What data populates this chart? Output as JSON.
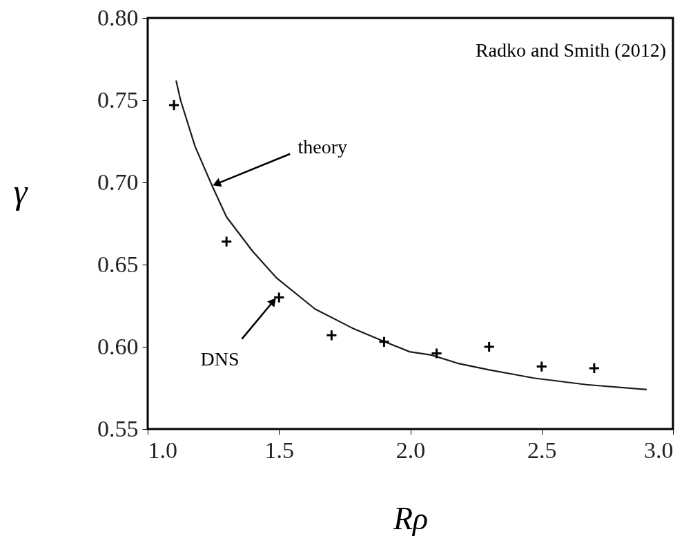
{
  "chart_data": {
    "type": "line",
    "xlabel": "Rρ",
    "ylabel": "γ",
    "xlim": [
      1.0,
      3.0
    ],
    "ylim": [
      0.55,
      0.8
    ],
    "xticks": [
      {
        "value": 1.0,
        "label": "1.0"
      },
      {
        "value": 1.5,
        "label": "1.5"
      },
      {
        "value": 2.0,
        "label": "2.0"
      },
      {
        "value": 2.5,
        "label": "2.5"
      },
      {
        "value": 3.0,
        "label": "3.0"
      }
    ],
    "yticks": [
      {
        "value": 0.55,
        "label": "0.55"
      },
      {
        "value": 0.6,
        "label": "0.60"
      },
      {
        "value": 0.65,
        "label": "0.65"
      },
      {
        "value": 0.7,
        "label": "0.70"
      },
      {
        "value": 0.75,
        "label": "0.75"
      },
      {
        "value": 0.8,
        "label": "0.80"
      }
    ],
    "grid": false,
    "series": [
      {
        "type": "line",
        "color": "#1a1a1a",
        "line_style": "solid",
        "marker": "none",
        "x": [
          1.108,
          1.125,
          1.18,
          1.245,
          1.3,
          1.4,
          1.49,
          1.637,
          1.784,
          1.903,
          1.997,
          2.08,
          2.18,
          2.3,
          2.47,
          2.67,
          2.9
        ],
        "values": [
          0.762,
          0.75,
          0.722,
          0.698,
          0.679,
          0.658,
          0.642,
          0.623,
          0.611,
          0.603,
          0.597,
          0.595,
          0.59,
          0.586,
          0.581,
          0.577,
          0.574
        ]
      },
      {
        "type": "scatter",
        "color": "#000000",
        "marker": "cross",
        "x": [
          1.1,
          1.3,
          1.5,
          1.7,
          1.9,
          2.1,
          2.3,
          2.5,
          2.7
        ],
        "values": [
          0.747,
          0.664,
          0.63,
          0.607,
          0.603,
          0.596,
          0.6,
          0.588,
          0.587
        ]
      }
    ],
    "annotations": [
      {
        "text": "theory",
        "x": 1.245,
        "y": 0.698
      },
      {
        "text": "DNS",
        "x": 1.49,
        "y": 0.63
      },
      "Radko and Smith (2012)"
    ]
  }
}
